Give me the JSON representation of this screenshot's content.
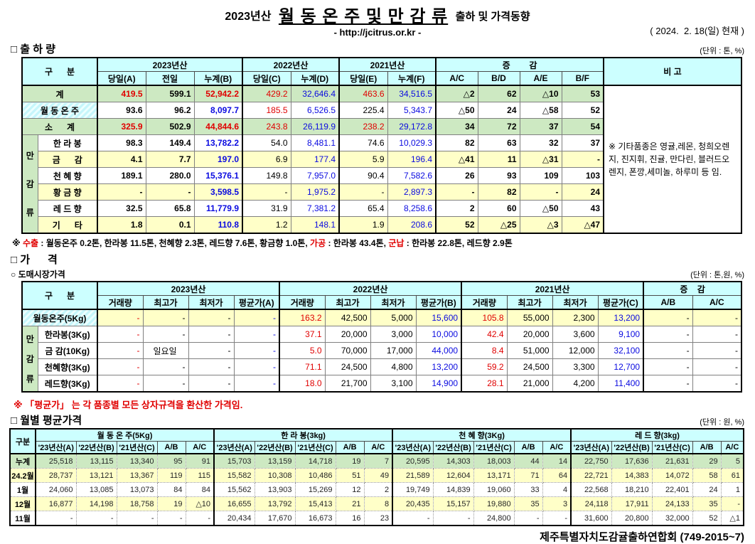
{
  "colors": {
    "red": "#e00000",
    "blue": "#0a0ae0",
    "cyan": "#ccffff",
    "green": "#cde9c2",
    "yellow": "#ffffc8"
  },
  "header": {
    "year_prefix": "2023년산",
    "title": "월 동 온 주 및 만 감 류",
    "title_suffix": "출하 및 가격동향",
    "url": "- http://jcitrus.or.kr -",
    "date": "( 2024.  2. 18(일) 현재 )"
  },
  "shipment": {
    "heading": "□ 출 하 량",
    "unit": "(단위 : 톤, %)",
    "head": {
      "gubun": "구      분",
      "y2023": "2023년산",
      "y2022": "2022년산",
      "y2021": "2021년산",
      "change": "증        감",
      "note_col": "비 고",
      "sub": [
        "당일(A)",
        "전일",
        "누계(B)",
        "당일(C)",
        "누계(D)",
        "당일(E)",
        "누계(F)",
        "A/C",
        "B/D",
        "A/E",
        "B/F"
      ]
    },
    "group_label": "만감류",
    "note": "※ 기타품종은 영귤,레몬, 청희오렌지, 진지휘, 진귤, 만다린, 블러드오렌지, 폰깡,세미놀, 하루미 등 임.",
    "rows": [
      {
        "label": "계",
        "full": true,
        "rc": "g",
        "note_rows": 9,
        "cells": [
          [
            "419.5",
            "r"
          ],
          "599.1",
          [
            "52,942.2",
            "r"
          ],
          [
            "429.2",
            "r"
          ],
          "32,646.4",
          [
            "463.6",
            "r"
          ],
          "34,516.5",
          "△2",
          "62",
          "△10",
          "53"
        ]
      },
      {
        "label": "월 동 온 주",
        "full": true,
        "rc": "c",
        "cells": [
          "93.6",
          "96.2",
          [
            "8,097.7",
            "u"
          ],
          [
            "185.5",
            "r"
          ],
          "6,526.5",
          "225.4",
          "5,343.7",
          "△50",
          "24",
          "△58",
          "52"
        ]
      },
      {
        "label": "소      계",
        "full": true,
        "rc": "g",
        "cells": [
          [
            "325.9",
            "r"
          ],
          "502.9",
          [
            "44,844.6",
            "r"
          ],
          [
            "243.8",
            "r"
          ],
          "26,119.9",
          [
            "238.2",
            "r"
          ],
          "29,172.8",
          "34",
          "72",
          "37",
          "54"
        ]
      },
      {
        "label": "한 라 봉",
        "group": 6,
        "rc": "w",
        "cells": [
          "98.3",
          "149.4",
          [
            "13,782.2",
            "u"
          ],
          "54.0",
          "8,481.1",
          "74.6",
          "10,029.3",
          "82",
          "63",
          "32",
          "37"
        ]
      },
      {
        "label": "금      감",
        "rc": "y",
        "cells": [
          "4.1",
          "7.7",
          [
            "197.0",
            "u"
          ],
          "6.9",
          "177.4",
          "5.9",
          "196.4",
          "△41",
          "11",
          "△31",
          "-"
        ]
      },
      {
        "label": "천 혜 향",
        "rc": "w",
        "cells": [
          "189.1",
          "280.0",
          [
            "15,376.1",
            "u"
          ],
          "149.8",
          "7,957.0",
          "90.4",
          "7,582.6",
          "26",
          "93",
          "109",
          "103"
        ]
      },
      {
        "label": "황 금 향",
        "rc": "y",
        "cells": [
          "-",
          "-",
          [
            "3,598.5",
            "u"
          ],
          "-",
          "1,975.2",
          "-",
          "2,897.3",
          "-",
          "82",
          "-",
          "24"
        ]
      },
      {
        "label": "레 드 향",
        "rc": "w",
        "cells": [
          "32.5",
          "65.8",
          [
            "11,779.9",
            "u"
          ],
          "31.9",
          "7,381.2",
          "65.4",
          "8,258.6",
          "2",
          "60",
          "△50",
          "43"
        ]
      },
      {
        "label": "기      타",
        "rc": "y",
        "cells": [
          "1.8",
          "0.1",
          [
            "110.8",
            "u"
          ],
          "1.2",
          "148.1",
          "1.9",
          "208.6",
          "52",
          "△25",
          "△3",
          "△47"
        ]
      }
    ],
    "export_note": [
      {
        "t": "※ "
      },
      {
        "t": "수출"
      },
      {
        "t": " : 월동온주 0.2톤, 한라봉 11.5톤, 천혜향 2.3톤, 레드향 7.6톤, 황금향 1.0톤, "
      },
      {
        "t": "가공"
      },
      {
        "t": " : 한라봉 43.4톤, "
      },
      {
        "t": "군납"
      },
      {
        "t": " : 한라봉 22.8톤, 레드향 2.9톤"
      }
    ]
  },
  "price": {
    "heading": "□ 가      격",
    "sub_heading": "○ 도매시장가격",
    "unit": "(단위 : 톤,원, %)",
    "head": {
      "gubun": "구      분",
      "y2023": "2023년산",
      "y2022": "2022년산",
      "y2021": "2021년산",
      "change": "증    감",
      "sub": [
        "거래량",
        "최고가",
        "최저가",
        "평균가(A)",
        "거래량",
        "최고가",
        "최저가",
        "평균가(B)",
        "거래량",
        "최고가",
        "최저가",
        "평균가(C)",
        "A/B",
        "A/C"
      ]
    },
    "group_label": "만감류",
    "rows": [
      {
        "label": "월동온주(5Kg)",
        "full": true,
        "rc": "cy",
        "cells": [
          "-",
          "-",
          "-",
          "-",
          "163.2",
          "42,500",
          "5,000",
          "15,600",
          "105.8",
          "55,000",
          "2,300",
          "13,200",
          "-",
          "-"
        ]
      },
      {
        "label": "한라봉(3Kg)",
        "group": 4,
        "rc": "w",
        "cells": [
          "-",
          "-",
          "-",
          "-",
          "37.1",
          "20,000",
          "3,000",
          "10,000",
          "42.4",
          "20,000",
          "3,600",
          "9,100",
          "-",
          "-"
        ]
      },
      {
        "label": "금 감(10Kg)",
        "rc": "w",
        "cells": [
          "-",
          [
            "일요일",
            "ctr"
          ],
          "-",
          "-",
          "5.0",
          "70,000",
          "17,000",
          "44,000",
          "8.4",
          "51,000",
          "12,000",
          "32,100",
          "-",
          "-"
        ]
      },
      {
        "label": "천혜향(3Kg)",
        "rc": "w",
        "cells": [
          "-",
          "-",
          "-",
          "-",
          "71.1",
          "24,500",
          "4,800",
          "13,200",
          "59.2",
          "24,500",
          "3,300",
          "12,700",
          "-",
          "-"
        ]
      },
      {
        "label": "레드향(3Kg)",
        "rc": "w",
        "cells": [
          "-",
          "-",
          "-",
          "-",
          "18.0",
          "21,700",
          "3,100",
          "14,900",
          "28.1",
          "21,000",
          "4,200",
          "11,400",
          "-",
          "-"
        ]
      }
    ],
    "avg_note": "※ 「평균가」 는 각 품종별 모든 상자규격을 환산한 가격임."
  },
  "monthly": {
    "heading": "□ 월별 평균가격",
    "unit": "(단위 : 원, %)",
    "head": {
      "gubun": "구분",
      "groups": [
        "월 동 온 주(5Kg)",
        "한 라 봉(3kg)",
        "천 혜 향(3Kg)",
        "레 드 향(3kg)"
      ],
      "sub": [
        "'23년산(A)",
        "'22년산(B)",
        "'21년산(C)",
        "A/B",
        "A/C"
      ]
    },
    "rows": [
      {
        "label": "누계",
        "rc": "g",
        "cells": [
          "25,518",
          "13,115",
          "13,340",
          "95",
          "91",
          "15,703",
          "13,159",
          "14,718",
          "19",
          "7",
          "20,595",
          "14,303",
          "18,003",
          "44",
          "14",
          "22,750",
          "17,636",
          "21,631",
          "29",
          "5"
        ]
      },
      {
        "label": "24.2월",
        "rc": "y",
        "cells": [
          "28,737",
          "13,121",
          "13,367",
          "119",
          "115",
          "15,582",
          "10,308",
          "10,486",
          "51",
          "49",
          "21,589",
          "12,604",
          "13,171",
          "71",
          "64",
          "22,721",
          "14,383",
          "14,072",
          "58",
          "61"
        ]
      },
      {
        "label": "1월",
        "rc": "w",
        "cells": [
          "24,060",
          "13,085",
          "13,073",
          "84",
          "84",
          "15,562",
          "13,903",
          "15,269",
          "12",
          "2",
          "19,749",
          "14,839",
          "19,060",
          "33",
          "4",
          "22,568",
          "18,210",
          "22,401",
          "24",
          "1"
        ]
      },
      {
        "label": "12월",
        "rc": "y",
        "cells": [
          "16,877",
          "14,198",
          "18,758",
          "19",
          "△10",
          "16,655",
          "13,792",
          "15,413",
          "21",
          "8",
          "20,435",
          "15,157",
          "19,880",
          "35",
          "3",
          "24,118",
          "17,911",
          "24,133",
          "35",
          "-"
        ]
      },
      {
        "label": "11월",
        "rc": "w",
        "cells": [
          "-",
          "-",
          "-",
          "-",
          "-",
          "20,434",
          "17,670",
          "16,673",
          "16",
          "23",
          "-",
          "-",
          "24,800",
          "-",
          "-",
          "31,600",
          "20,800",
          "32,000",
          "52",
          "△1"
        ]
      }
    ]
  },
  "footer": "제주특별자치도감귤출하연합회 (749-2015~7)"
}
